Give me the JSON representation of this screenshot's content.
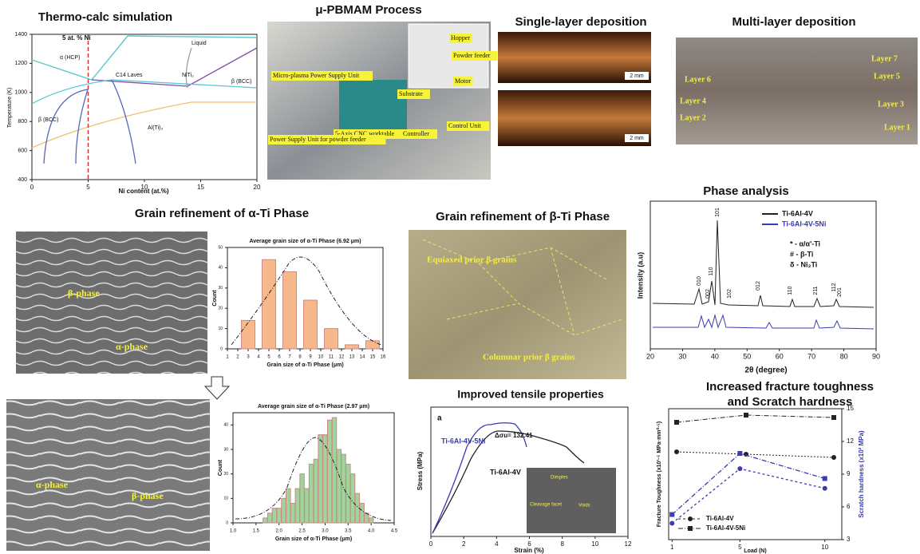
{
  "thermocalc": {
    "title": "Thermo-calc simulation",
    "composition_label": "5 at. % Ni",
    "xlabel": "Ni content (at.%)",
    "ylabel": "Temperature (K)",
    "xlim": [
      0,
      20
    ],
    "xticks": [
      0,
      5,
      10,
      15,
      20
    ],
    "ylim": [
      400,
      1400
    ],
    "yticks": [
      400,
      600,
      800,
      1000,
      1200,
      1400
    ],
    "phase_labels": [
      "Liquid",
      "α (HCP)",
      "C14 Laves",
      "NiTi₂",
      "β (BCC)",
      "β (BCC)",
      "Al(Ti)₃"
    ]
  },
  "process": {
    "title": "μ-PBMAM Process",
    "labels": [
      "Hopper",
      "Powder feeder",
      "Motor",
      "Micro-plasma Power Supply Unit",
      "Substrate",
      "5-Axis CNC worktable",
      "Controller",
      "Control Unit",
      "Power Supply Unit for powder feeder"
    ]
  },
  "single_layer": {
    "title": "Single-layer deposition",
    "scale_labels": [
      "2 mm",
      "2 mm"
    ]
  },
  "multi_layer": {
    "title": "Multi-layer deposition",
    "layers": [
      "Layer 7",
      "Layer 6",
      "Layer 5",
      "Layer 4",
      "Layer 3",
      "Layer 2",
      "Layer 1"
    ]
  },
  "alpha_grain": {
    "title": "Grain refinement of α-Ti Phase",
    "labels": [
      "β-phase",
      "α-phase"
    ]
  },
  "alpha_grain_refined": {
    "labels": [
      "α-phase",
      "β-phase"
    ]
  },
  "beta_grain": {
    "title": "Grain refinement of β-Ti Phase",
    "labels": [
      "Equiaxed prior β grains",
      "Columnar prior β grains"
    ]
  },
  "phase_analysis": {
    "title": "Phase analysis",
    "xlabel": "2θ (degree)",
    "ylabel": "Intensity (a.u)",
    "xlim": [
      20,
      90
    ],
    "xticks": [
      20,
      30,
      40,
      50,
      60,
      70,
      80,
      90
    ],
    "legend": [
      "Ti-6Al-4V",
      "Ti-6Al-4V-5Ni"
    ],
    "notation": [
      "* - α/α'-Ti",
      "# - β-Ti",
      "δ - Ni₂Ti"
    ],
    "peak_labels": [
      "010",
      "002",
      "101",
      "110",
      "102",
      "012",
      "110",
      "211",
      "112",
      "201"
    ]
  },
  "tensile": {
    "title": "Improved tensile properties",
    "panel_letter": "a",
    "xlabel": "Strain (%)",
    "ylabel": "Stress (MPa)",
    "xlim": [
      0,
      12
    ],
    "xticks": [
      0,
      2,
      4,
      6,
      8,
      10,
      12
    ],
    "curve_labels": [
      "Ti-6Al-4V-5Ni",
      "Ti-6Al-4V"
    ],
    "delta_label": "Δσu= 132.41",
    "inset_labels": [
      "Dimples",
      "Cleavage facet",
      "Voids"
    ]
  },
  "chart_data": [
    {
      "type": "bar",
      "title": "Average grain size of α-Ti Phase (6.92 μm)",
      "xlabel": "Grain size of α-Ti Phase (μm)",
      "ylabel": "Count",
      "x": [
        3,
        5,
        7,
        9,
        11,
        13,
        15
      ],
      "values": [
        14,
        44,
        38,
        24,
        10,
        2,
        4
      ],
      "color": "#f7b98b",
      "xlim": [
        1,
        16
      ],
      "xticks": [
        1,
        2,
        3,
        4,
        5,
        6,
        7,
        8,
        9,
        10,
        11,
        12,
        13,
        14,
        15,
        16
      ],
      "ylim": [
        0,
        50
      ],
      "yticks": [
        0,
        10,
        20,
        30,
        40,
        50
      ]
    },
    {
      "type": "bar",
      "title": "Average grain size of α-Ti Phase (2.97 μm)",
      "xlabel": "Grain size of α-Ti Phase (μm)",
      "ylabel": "Count",
      "x": [
        1.7,
        1.8,
        1.9,
        2.0,
        2.1,
        2.2,
        2.3,
        2.4,
        2.5,
        2.6,
        2.7,
        2.8,
        2.9,
        3.0,
        3.1,
        3.2,
        3.3,
        3.4,
        3.5,
        3.6,
        3.7,
        3.8,
        3.9,
        4.0
      ],
      "values": [
        2,
        4,
        6,
        6,
        10,
        14,
        8,
        14,
        20,
        14,
        24,
        26,
        36,
        36,
        42,
        43,
        30,
        28,
        24,
        20,
        12,
        8,
        4,
        2
      ],
      "color": "#9fd49a",
      "xlim": [
        1.0,
        4.5
      ],
      "xticks": [
        {
          "value": 1,
          "label": "1.0"
        },
        1.5,
        {
          "value": 2,
          "label": "2.0"
        },
        2.5,
        {
          "value": 3,
          "label": "3.0"
        },
        3.5,
        {
          "value": 4,
          "label": "4.0"
        },
        4.5
      ],
      "ylim": [
        0,
        45
      ],
      "yticks": [
        0,
        10,
        20,
        30,
        40
      ]
    },
    {
      "type": "line",
      "title": [
        "Increased fracture toughness",
        "and Scratch hardness"
      ],
      "xlabel": "Load (N)",
      "ylabel": "Fracture Toughness (x10¹·⁵ MPa·mm⁰·⁵)",
      "y2label": "Scratch hardness (x10² MPa)",
      "x": [
        1,
        5,
        10
      ],
      "xlim": [
        0.8,
        11
      ],
      "xticks": [
        1,
        5,
        10
      ],
      "y2lim": [
        3,
        15
      ],
      "y2ticks": [
        3,
        6,
        9,
        12,
        15
      ],
      "series": [
        {
          "name": "Ti-6Al-4V",
          "color": "#3b3bb0",
          "marker": "circle",
          "axis": "y2",
          "values": [
            4.5,
            9.5,
            7.7
          ]
        },
        {
          "name": "Ti-6Al-4V-5Ni",
          "color": "#3b3bb0",
          "marker": "square",
          "axis": "y2",
          "values": [
            5.3,
            10.9,
            8.6
          ]
        }
      ]
    }
  ]
}
